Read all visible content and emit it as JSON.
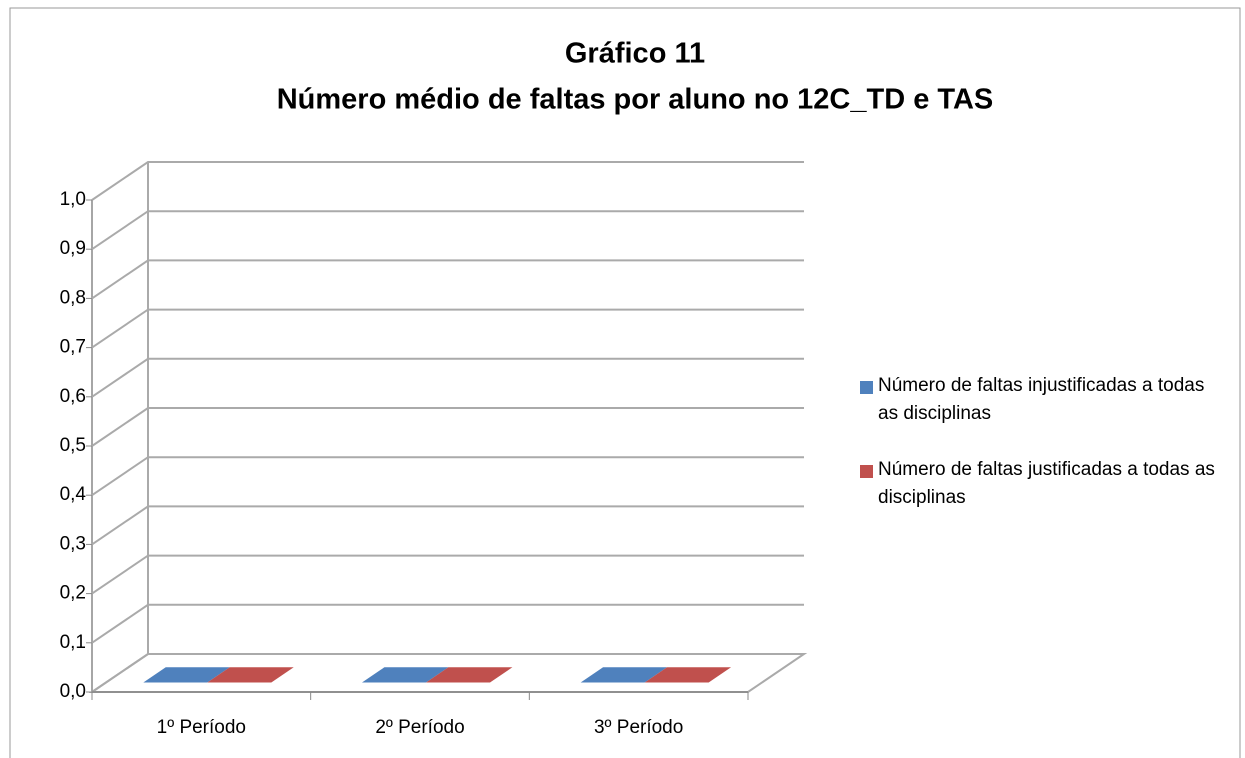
{
  "chart_data": {
    "type": "bar3d",
    "title": [
      "Gráfico 11",
      "Número médio de faltas por aluno no 12C_TD e TAS"
    ],
    "categories": [
      "1º Período",
      "2º Período",
      "3º Período"
    ],
    "series": [
      {
        "name": "Número de faltas injustificadas a todas as disciplinas",
        "color": "#4f81bd",
        "values": [
          0,
          0,
          0
        ]
      },
      {
        "name": "Número de faltas justificadas a todas as disciplinas",
        "color": "#c0504d",
        "values": [
          0,
          0,
          0
        ]
      }
    ],
    "ylim": [
      0,
      1
    ],
    "yticks": [
      {
        "value": 0,
        "label": "0,0"
      },
      {
        "value": 0.1,
        "label": "0,1"
      },
      {
        "value": 0.2,
        "label": "0,2"
      },
      {
        "value": 0.3,
        "label": "0,3"
      },
      {
        "value": 0.4,
        "label": "0,4"
      },
      {
        "value": 0.5,
        "label": "0,5"
      },
      {
        "value": 0.6,
        "label": "0,6"
      },
      {
        "value": 0.7,
        "label": "0,7"
      },
      {
        "value": 0.8,
        "label": "0,8"
      },
      {
        "value": 0.9,
        "label": "0,9"
      },
      {
        "value": 1,
        "label": "1,0"
      }
    ],
    "grid": true,
    "legend": "right"
  }
}
